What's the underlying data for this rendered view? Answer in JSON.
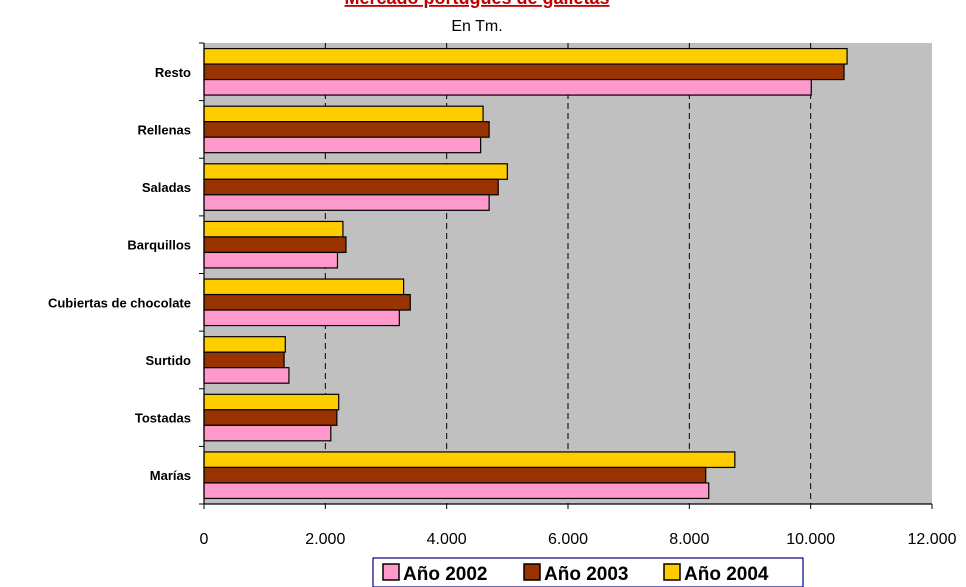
{
  "chart_data": {
    "type": "bar",
    "orientation": "horizontal",
    "title": "Mercado portugués de galletas",
    "subtitle": "En Tm.",
    "categories": [
      "Resto",
      "Rellenas",
      "Saladas",
      "Barquillos",
      "Cubiertas de chocolate",
      "Surtido",
      "Tostadas",
      "Marías"
    ],
    "series": [
      {
        "name": "Año 2002",
        "color": "#ff99cc",
        "values": [
          10010,
          4560,
          4700,
          2200,
          3220,
          1400,
          2090,
          8320
        ]
      },
      {
        "name": "Año 2003",
        "color": "#993300",
        "values": [
          10550,
          4700,
          4850,
          2340,
          3400,
          1320,
          2190,
          8270
        ]
      },
      {
        "name": "Año 2004",
        "color": "#ffcc00",
        "values": [
          10600,
          4600,
          5000,
          2290,
          3290,
          1340,
          2220,
          8750
        ]
      }
    ],
    "xlim": [
      0,
      12000
    ],
    "x_ticks": [
      0,
      2000,
      4000,
      6000,
      8000,
      10000,
      12000
    ],
    "x_tick_labels": [
      "0",
      "2.000",
      "4.000",
      "6.000",
      "8.000",
      "10.000",
      "12.000"
    ],
    "grid": true,
    "plot_background": "#c0c0c0",
    "title_color": "#c00000",
    "legend_placement": "bottom",
    "legend_border_color": "#000080"
  }
}
